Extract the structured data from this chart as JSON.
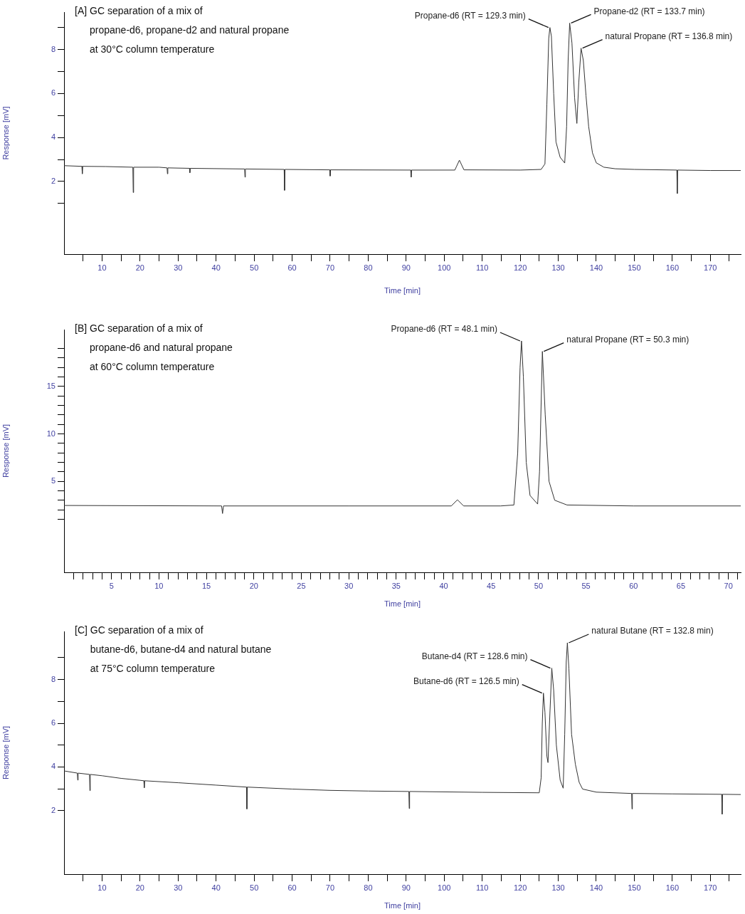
{
  "chart_data": [
    {
      "type": "line",
      "title": "[A] GC separation of a mix of\npropane-d6, propane-d2 and natural propane\nat 30°C column temperature",
      "xlabel": "Time [min]",
      "ylabel": "Response [mV]",
      "marker": "none",
      "xlim": [
        0,
        178
      ],
      "ylim": [
        -1.3,
        9.7
      ],
      "xticks": [
        {
          "value": 5,
          "label": null
        },
        10,
        {
          "value": 15,
          "label": null
        },
        20,
        {
          "value": 25,
          "label": null
        },
        30,
        {
          "value": 35,
          "label": null
        },
        40,
        {
          "value": 45,
          "label": null
        },
        50,
        {
          "value": 55,
          "label": null
        },
        60,
        {
          "value": 65,
          "label": null
        },
        70,
        {
          "value": 75,
          "label": null
        },
        80,
        {
          "value": 85,
          "label": null
        },
        90,
        {
          "value": 95,
          "label": null
        },
        100,
        {
          "value": 105,
          "label": null
        },
        110,
        {
          "value": 115,
          "label": null
        },
        120,
        {
          "value": 125,
          "label": null
        },
        130,
        {
          "value": 135,
          "label": null
        },
        140,
        {
          "value": 145,
          "label": null
        },
        150,
        {
          "value": 155,
          "label": null
        },
        160,
        {
          "value": 165,
          "label": null
        },
        170,
        {
          "value": 175,
          "label": null
        }
      ],
      "yticks": [
        {
          "value": 1,
          "label": null
        },
        2,
        {
          "value": 3,
          "label": null
        },
        4,
        {
          "value": 5,
          "label": null
        },
        6,
        {
          "value": 7,
          "label": null
        },
        8,
        {
          "value": 9,
          "label": null
        }
      ],
      "series": [
        {
          "color": "#333333",
          "x": [
            0,
            4.7,
            4.8,
            4.9,
            11,
            18.1,
            18.2,
            18.3,
            25,
            27.1,
            27.2,
            27.3,
            33,
            33.1,
            33.2,
            47.5,
            47.6,
            47.7,
            57.9,
            58,
            58.1,
            69.9,
            70,
            70.1,
            91.2,
            91.3,
            91.4,
            102.8,
            104,
            105.2,
            120,
            125.5,
            126.5,
            127,
            127.5,
            127.8,
            128.2,
            128.8,
            129.4,
            130.5,
            131.7,
            132.2,
            132.6,
            133,
            133.6,
            134.3,
            134.9,
            135.4,
            136,
            136.6,
            137.3,
            138,
            139,
            140,
            142,
            145,
            150,
            161.2,
            161.3,
            161.4,
            170,
            178
          ],
          "values": [
            2.72,
            2.69,
            2.35,
            2.69,
            2.68,
            2.65,
            1.5,
            2.65,
            2.65,
            2.62,
            2.35,
            2.62,
            2.6,
            2.4,
            2.6,
            2.57,
            2.2,
            2.57,
            2.55,
            1.6,
            2.55,
            2.53,
            2.25,
            2.53,
            2.52,
            2.2,
            2.52,
            2.52,
            2.97,
            2.53,
            2.52,
            2.55,
            2.8,
            5.5,
            8.5,
            9.0,
            8.6,
            6.0,
            3.8,
            3.1,
            2.84,
            4.5,
            7.5,
            9.2,
            8.3,
            5.8,
            4.64,
            6.5,
            8.06,
            7.5,
            5.9,
            4.5,
            3.3,
            2.85,
            2.65,
            2.58,
            2.55,
            2.52,
            1.45,
            2.52,
            2.5,
            2.5
          ]
        }
      ],
      "annotations": [
        {
          "text": "Propane-d6 (RT = 129.3 min)",
          "x": 127.8,
          "y": 9.0
        },
        {
          "text": "Propane-d2 (RT = 133.7 min)",
          "x": 133,
          "y": 9.2
        },
        {
          "text": "natural Propane (RT = 136.8 min)",
          "x": 136,
          "y": 8.06
        }
      ]
    },
    {
      "type": "line",
      "title": "[B] GC separation of a mix of\npropane-d6 and natural propane\nat 60°C column temperature",
      "xlabel": "Time [min]",
      "ylabel": "Response [mV]",
      "marker": "none",
      "xlim": [
        0,
        71.3
      ],
      "ylim": [
        -4.6,
        21
      ],
      "xticks": [
        {
          "value": 1,
          "label": null
        },
        {
          "value": 2,
          "label": null
        },
        {
          "value": 3,
          "label": null
        },
        {
          "value": 4,
          "label": null
        },
        5,
        {
          "value": 6,
          "label": null
        },
        {
          "value": 7,
          "label": null
        },
        {
          "value": 8,
          "label": null
        },
        {
          "value": 9,
          "label": null
        },
        10,
        {
          "value": 11,
          "label": null
        },
        {
          "value": 12,
          "label": null
        },
        {
          "value": 13,
          "label": null
        },
        {
          "value": 14,
          "label": null
        },
        15,
        {
          "value": 16,
          "label": null
        },
        {
          "value": 17,
          "label": null
        },
        {
          "value": 18,
          "label": null
        },
        {
          "value": 19,
          "label": null
        },
        20,
        {
          "value": 21,
          "label": null
        },
        {
          "value": 22,
          "label": null
        },
        {
          "value": 23,
          "label": null
        },
        {
          "value": 24,
          "label": null
        },
        25,
        {
          "value": 26,
          "label": null
        },
        {
          "value": 27,
          "label": null
        },
        {
          "value": 28,
          "label": null
        },
        {
          "value": 29,
          "label": null
        },
        30,
        {
          "value": 31,
          "label": null
        },
        {
          "value": 32,
          "label": null
        },
        {
          "value": 33,
          "label": null
        },
        {
          "value": 34,
          "label": null
        },
        35,
        {
          "value": 36,
          "label": null
        },
        {
          "value": 37,
          "label": null
        },
        {
          "value": 38,
          "label": null
        },
        {
          "value": 39,
          "label": null
        },
        40,
        {
          "value": 41,
          "label": null
        },
        {
          "value": 42,
          "label": null
        },
        {
          "value": 43,
          "label": null
        },
        {
          "value": 44,
          "label": null
        },
        45,
        {
          "value": 46,
          "label": null
        },
        {
          "value": 47,
          "label": null
        },
        {
          "value": 48,
          "label": null
        },
        {
          "value": 49,
          "label": null
        },
        50,
        {
          "value": 51,
          "label": null
        },
        {
          "value": 52,
          "label": null
        },
        {
          "value": 53,
          "label": null
        },
        {
          "value": 54,
          "label": null
        },
        55,
        {
          "value": 56,
          "label": null
        },
        {
          "value": 57,
          "label": null
        },
        {
          "value": 58,
          "label": null
        },
        {
          "value": 59,
          "label": null
        },
        60,
        {
          "value": 61,
          "label": null
        },
        {
          "value": 62,
          "label": null
        },
        {
          "value": 63,
          "label": null
        },
        {
          "value": 64,
          "label": null
        },
        65,
        {
          "value": 66,
          "label": null
        },
        {
          "value": 67,
          "label": null
        },
        {
          "value": 68,
          "label": null
        },
        {
          "value": 69,
          "label": null
        },
        70,
        {
          "value": 71,
          "label": null
        }
      ],
      "yticks": [
        {
          "value": 1,
          "label": null
        },
        {
          "value": 2,
          "label": null
        },
        {
          "value": 3,
          "label": null
        },
        {
          "value": 4,
          "label": null
        },
        5,
        {
          "value": 6,
          "label": null
        },
        {
          "value": 7,
          "label": null
        },
        {
          "value": 8,
          "label": null
        },
        {
          "value": 9,
          "label": null
        },
        10,
        {
          "value": 11,
          "label": null
        },
        {
          "value": 12,
          "label": null
        },
        {
          "value": 13,
          "label": null
        },
        {
          "value": 14,
          "label": null
        },
        15,
        {
          "value": 16,
          "label": null
        },
        {
          "value": 17,
          "label": null
        },
        {
          "value": 18,
          "label": null
        },
        {
          "value": 19,
          "label": null
        }
      ],
      "series": [
        {
          "color": "#333333",
          "x": [
            0,
            16.6,
            16.7,
            16.8,
            30,
            40.8,
            41.45,
            42.1,
            46,
            47.4,
            47.8,
            48.05,
            48.2,
            48.4,
            48.7,
            49.1,
            49.9,
            50.1,
            50.4,
            50.7,
            51.1,
            51.7,
            53,
            60,
            71.3
          ],
          "values": [
            2.45,
            2.4,
            1.6,
            2.4,
            2.4,
            2.4,
            3.05,
            2.4,
            2.4,
            2.5,
            8,
            17,
            19.8,
            16,
            7,
            3.5,
            2.6,
            6,
            18.7,
            12,
            5,
            3.0,
            2.5,
            2.4,
            2.4
          ]
        }
      ],
      "annotations": [
        {
          "text": "Propane-d6 (RT = 48.1 min)",
          "x": 48.2,
          "y": 19.8
        },
        {
          "text": "natural Propane (RT = 50.3 min)",
          "x": 50.4,
          "y": 18.7
        }
      ]
    },
    {
      "type": "line",
      "title": "[C] GC separation of a mix of\nbutane-d6, butane-d4 and natural butane\nat 75°C column temperature",
      "xlabel": "Time [min]",
      "ylabel": "Response [mV]",
      "marker": "none",
      "xlim": [
        0,
        178
      ],
      "ylim": [
        -0.9,
        10.2
      ],
      "xticks": [
        {
          "value": 5,
          "label": null
        },
        10,
        {
          "value": 15,
          "label": null
        },
        20,
        {
          "value": 25,
          "label": null
        },
        30,
        {
          "value": 35,
          "label": null
        },
        40,
        {
          "value": 45,
          "label": null
        },
        50,
        {
          "value": 55,
          "label": null
        },
        60,
        {
          "value": 65,
          "label": null
        },
        70,
        {
          "value": 75,
          "label": null
        },
        80,
        {
          "value": 85,
          "label": null
        },
        90,
        {
          "value": 95,
          "label": null
        },
        100,
        {
          "value": 105,
          "label": null
        },
        110,
        {
          "value": 115,
          "label": null
        },
        120,
        {
          "value": 125,
          "label": null
        },
        130,
        {
          "value": 135,
          "label": null
        },
        140,
        {
          "value": 145,
          "label": null
        },
        150,
        {
          "value": 155,
          "label": null
        },
        160,
        {
          "value": 165,
          "label": null
        },
        170,
        {
          "value": 175,
          "label": null
        }
      ],
      "yticks": [
        2,
        {
          "value": 3,
          "label": null
        },
        4,
        {
          "value": 5,
          "label": null
        },
        6,
        {
          "value": 7,
          "label": null
        },
        8,
        {
          "value": 9,
          "label": null
        }
      ],
      "series": [
        {
          "color": "#333333",
          "x": [
            0,
            3.5,
            3.6,
            3.7,
            6.7,
            6.8,
            6.9,
            10,
            15,
            20,
            21,
            21.1,
            21.2,
            30,
            40,
            48,
            48.1,
            48.2,
            60,
            70,
            80,
            90.7,
            90.8,
            90.9,
            110,
            125,
            125.5,
            125.8,
            126.1,
            126.5,
            127,
            127.3,
            127.7,
            128.3,
            128.8,
            129.5,
            130.5,
            131.3,
            131.7,
            132.1,
            132.4,
            132.8,
            133.5,
            134.5,
            135.5,
            136.4,
            140,
            149.3,
            149.4,
            149.5,
            160,
            173,
            173.1,
            173.2,
            178
          ],
          "values": [
            3.82,
            3.72,
            3.4,
            3.72,
            3.66,
            2.92,
            3.66,
            3.6,
            3.48,
            3.39,
            3.37,
            3.05,
            3.37,
            3.28,
            3.17,
            3.08,
            2.08,
            3.08,
            2.99,
            2.93,
            2.9,
            2.88,
            2.1,
            2.88,
            2.84,
            2.82,
            3.5,
            6.0,
            7.38,
            6.5,
            4.5,
            4.2,
            6.0,
            8.52,
            7.5,
            5.0,
            3.4,
            3.03,
            5.5,
            8.8,
            9.68,
            8.5,
            5.5,
            4.13,
            3.3,
            2.99,
            2.85,
            2.79,
            2.08,
            2.79,
            2.77,
            2.75,
            1.84,
            2.75,
            2.74
          ]
        }
      ],
      "annotations": [
        {
          "text": "Butane-d6 (RT = 126.5 min)",
          "x": 126.1,
          "y": 7.38
        },
        {
          "text": "Butane-d4 (RT = 128.6 min)",
          "x": 128.3,
          "y": 8.52
        },
        {
          "text": "natural Butane (RT = 132.8 min)",
          "x": 132.4,
          "y": 9.68
        }
      ]
    }
  ]
}
